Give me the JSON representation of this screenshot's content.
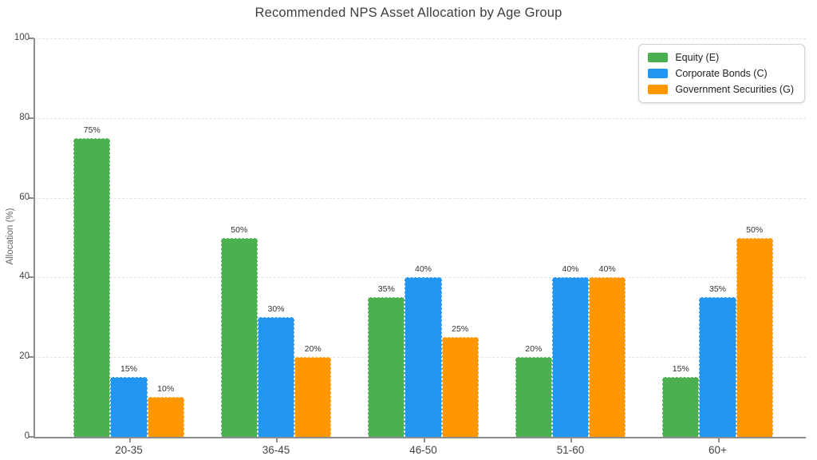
{
  "title": "Recommended NPS Asset Allocation by Age Group",
  "y_axis_title": "Allocation (%)",
  "chart_data": {
    "type": "bar",
    "title": "Recommended NPS Asset Allocation by Age Group",
    "xlabel": "",
    "ylabel": "Allocation (%)",
    "categories": [
      "20-35",
      "36-45",
      "46-50",
      "51-60",
      "60+"
    ],
    "series": [
      {
        "name": "Equity (E)",
        "color": "#4CAF50",
        "values": [
          75,
          50,
          35,
          20,
          15
        ]
      },
      {
        "name": "Corporate Bonds (C)",
        "color": "#2196F3",
        "values": [
          15,
          30,
          40,
          40,
          35
        ]
      },
      {
        "name": "Government Securities (G)",
        "color": "#FF9800",
        "values": [
          10,
          20,
          25,
          40,
          50
        ]
      }
    ],
    "ylim": [
      0,
      100
    ],
    "yticks": [
      0,
      20,
      40,
      60,
      80,
      100
    ],
    "grid": "horizontal-dashed",
    "legend_position": "top-right",
    "bar_label_format": "{value}%"
  },
  "colors": {
    "background": "#ffffff",
    "axis": "#8d8d8d",
    "gridline": "#e3e3e3",
    "title_text": "#3c4043",
    "tick_text": "#444444",
    "bar_label_text": "#333333"
  }
}
